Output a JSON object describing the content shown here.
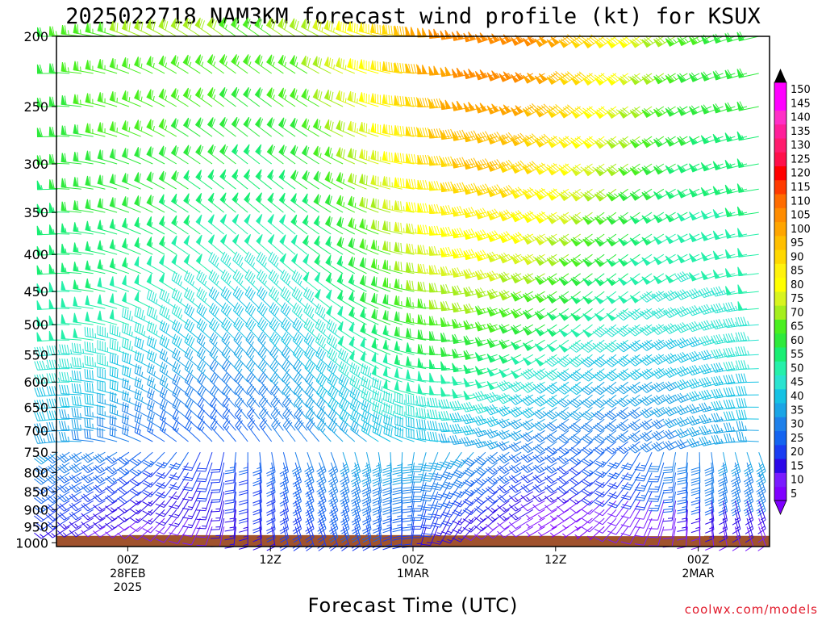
{
  "chart_data": {
    "type": "wind-profile",
    "title": "2025022718 NAM3KM forecast wind profile (kt) for KSUX",
    "xlabel": "Forecast Time (UTC)",
    "ylabel": "",
    "y_ticks": [
      "200",
      "250",
      "300",
      "350",
      "400",
      "450",
      "500",
      "550",
      "600",
      "650",
      "700",
      "750",
      "800",
      "850",
      "900",
      "950",
      "1000"
    ],
    "x_ticks": [
      {
        "hour": 6,
        "lines": [
          "00Z",
          "28FEB",
          "2025"
        ]
      },
      {
        "hour": 18,
        "lines": [
          "12Z"
        ]
      },
      {
        "hour": 30,
        "lines": [
          "00Z",
          "1MAR"
        ]
      },
      {
        "hour": 42,
        "lines": [
          "12Z"
        ]
      },
      {
        "hour": 54,
        "lines": [
          "00Z",
          "2MAR"
        ]
      }
    ],
    "x_range_hours": [
      0,
      60
    ],
    "y_range_hpa": [
      200,
      1012
    ],
    "colorbar": {
      "levels": [
        "5",
        "10",
        "15",
        "20",
        "25",
        "30",
        "35",
        "40",
        "45",
        "50",
        "55",
        "60",
        "65",
        "70",
        "75",
        "80",
        "85",
        "90",
        "95",
        "100",
        "105",
        "110",
        "115",
        "120",
        "125",
        "130",
        "135",
        "140",
        "145",
        "150"
      ],
      "colors": [
        "#7f00ff",
        "#7a1bff",
        "#2c07e8",
        "#1a3cf2",
        "#1464f0",
        "#1e80ea",
        "#1aa5e6",
        "#15c2e4",
        "#2ae3d0",
        "#25f0aa",
        "#19ee73",
        "#2eea3c",
        "#4aef20",
        "#a5ee1d",
        "#d8f41e",
        "#ffff00",
        "#fff20c",
        "#ffd800",
        "#ffbf00",
        "#ffa500",
        "#ff8c00",
        "#ff6c00",
        "#ff3a00",
        "#ff0000",
        "#ff0f4a",
        "#ff1c6e",
        "#ff1f9a",
        "#ff2fc7",
        "#ff00ff",
        "#ff00ff"
      ]
    },
    "terrain_color": "#a0522d",
    "terrain_top_hpa": [
      978,
      978,
      978,
      978,
      978,
      978,
      976,
      976,
      976,
      976,
      976,
      976,
      976,
      976,
      976,
      976,
      976,
      976,
      976,
      976,
      976,
      976,
      976,
      976,
      976,
      976,
      976,
      976,
      976,
      976,
      976,
      977,
      977,
      977,
      977,
      977,
      977,
      977,
      978,
      978,
      978,
      978,
      978,
      979,
      979,
      979,
      979,
      979,
      979,
      979,
      979,
      979,
      979,
      979,
      979,
      978,
      978,
      978,
      978,
      978,
      978
    ]
  },
  "credit": "coolwx.com/models"
}
